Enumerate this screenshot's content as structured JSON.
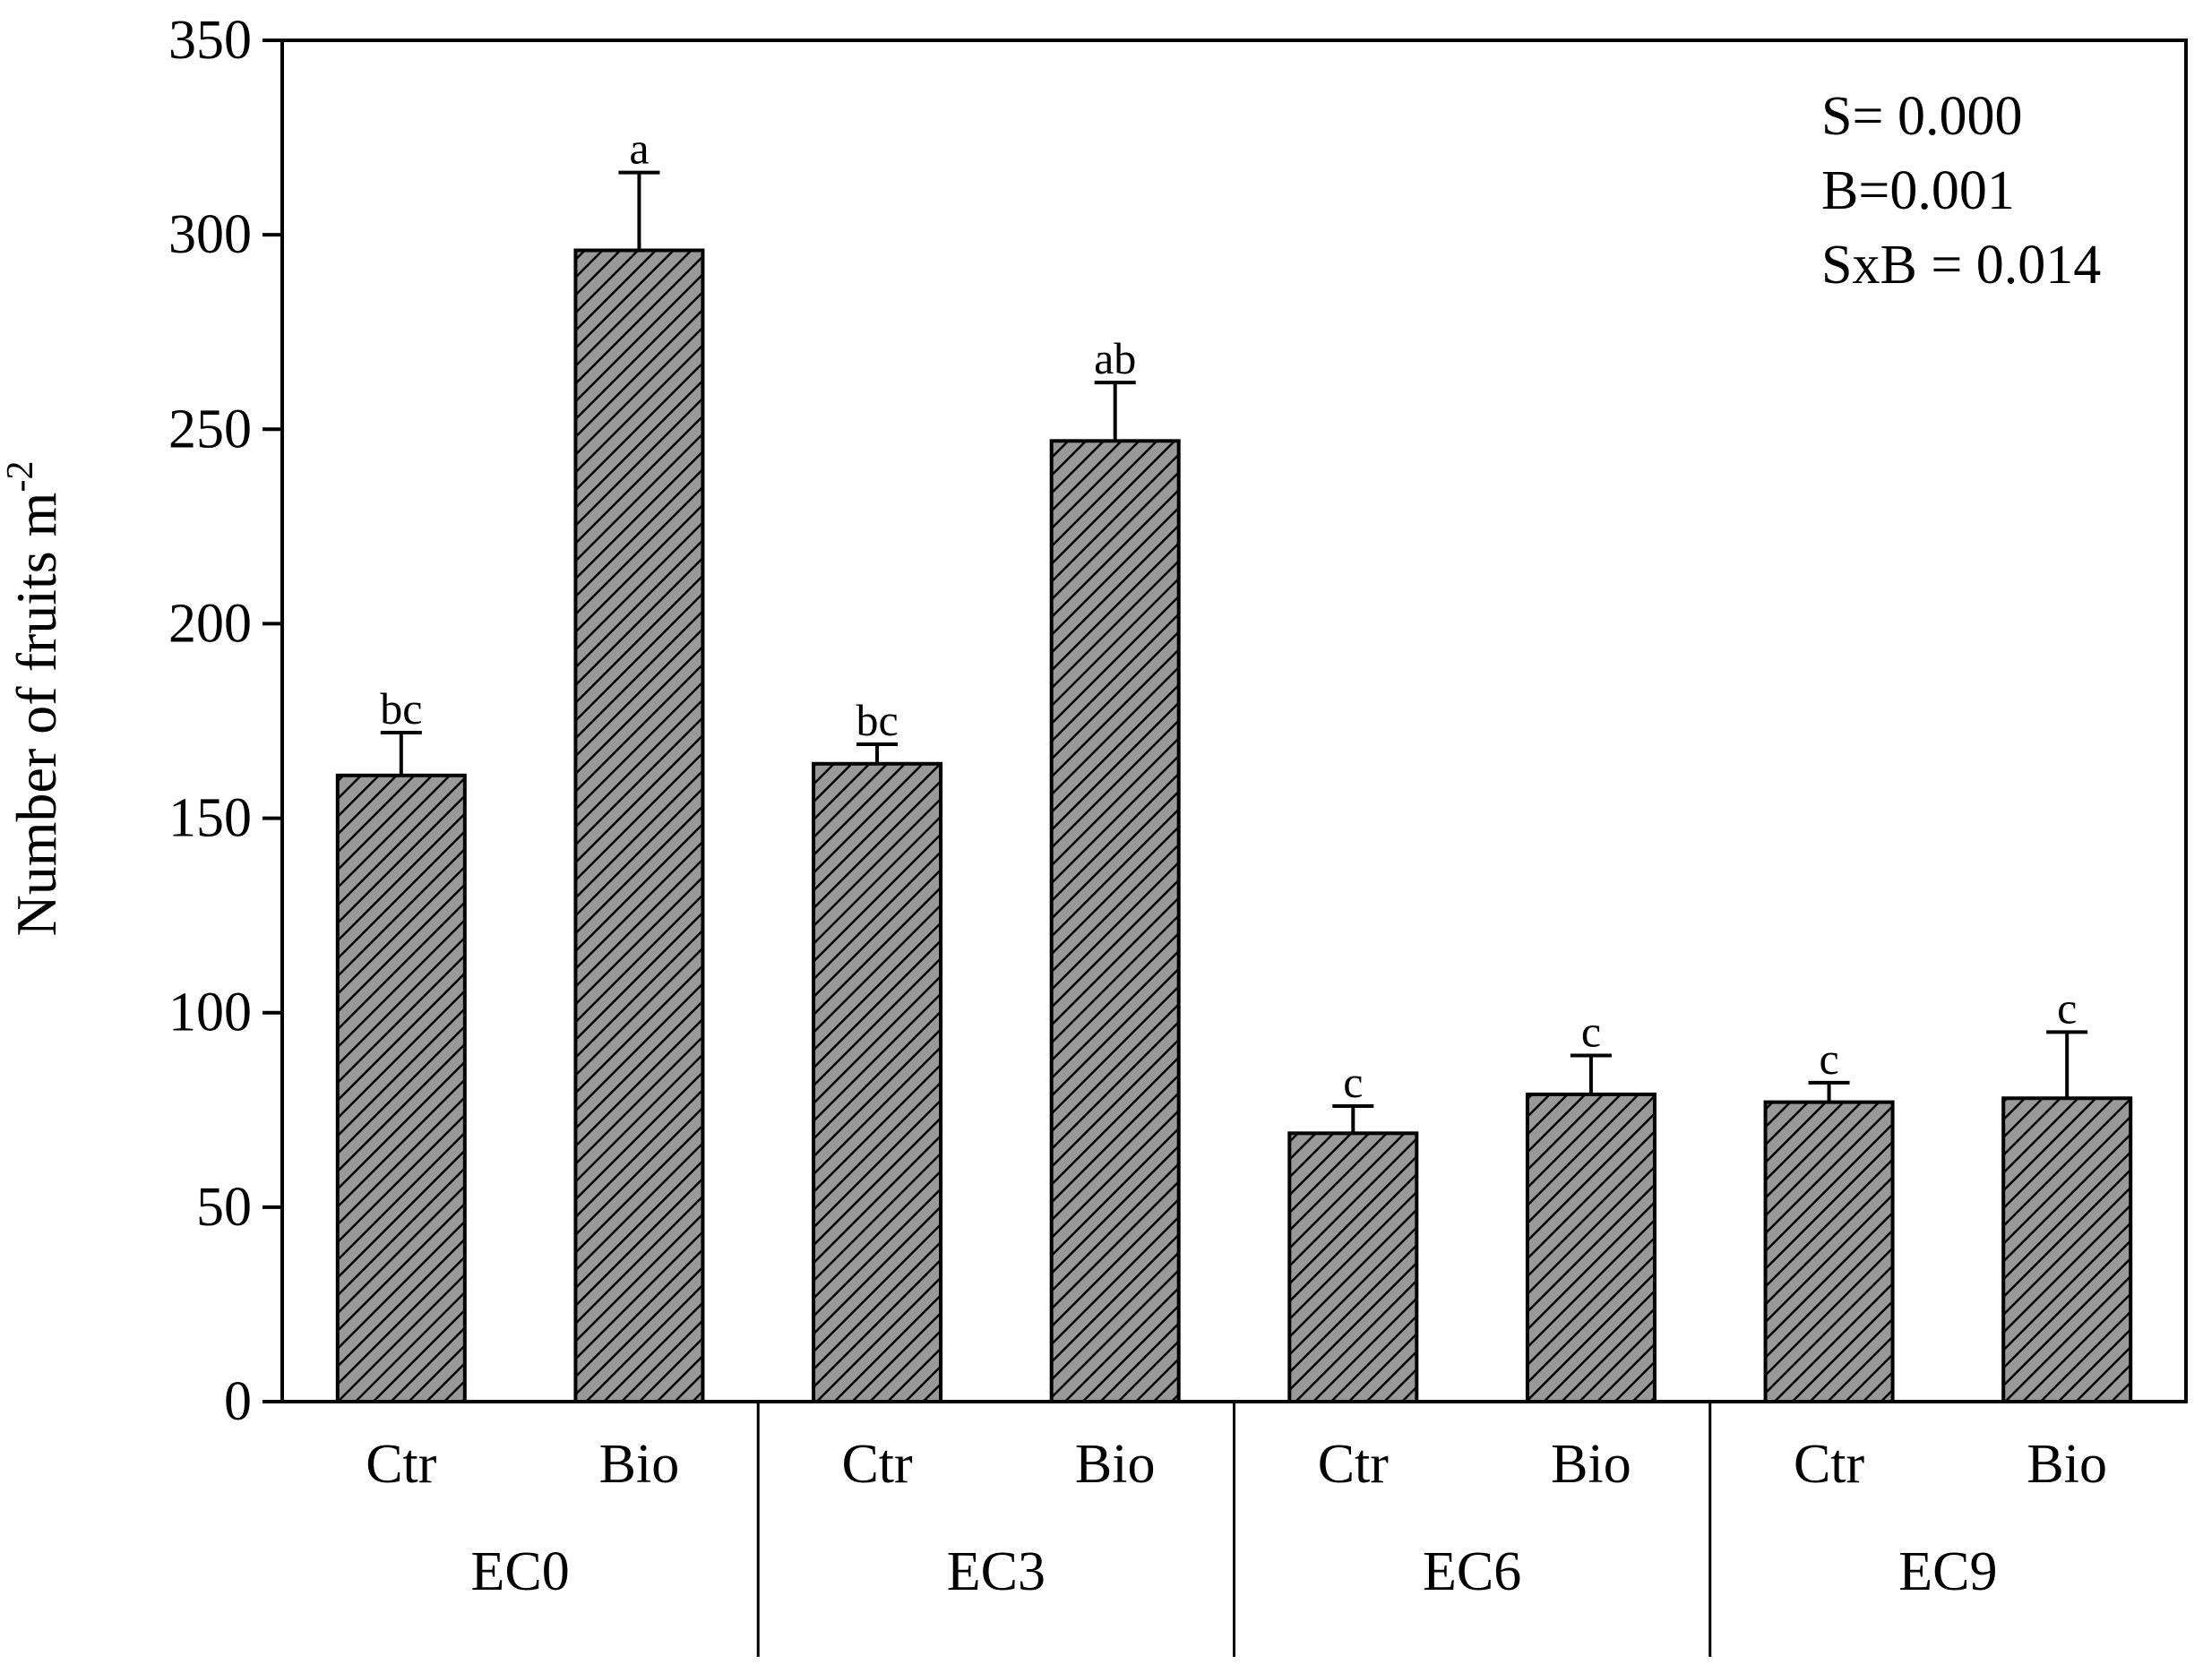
{
  "chart_data": {
    "type": "bar",
    "title": "",
    "xlabel": "",
    "ylabel": "Number of fruits m",
    "ylabel_superscript": "-2",
    "ylim": [
      0,
      350
    ],
    "yticks": [
      0,
      50,
      100,
      150,
      200,
      250,
      300,
      350
    ],
    "yticks_labels": [
      "0",
      "50",
      "100",
      "150",
      "200",
      "250",
      "300",
      "350"
    ],
    "grid": false,
    "groups": [
      "EC0",
      "EC3",
      "EC6",
      "EC9"
    ],
    "categories": [
      "Ctr",
      "Bio",
      "Ctr",
      "Bio",
      "Ctr",
      "Bio",
      "Ctr",
      "Bio"
    ],
    "values": [
      161,
      296,
      164,
      247,
      69,
      79,
      77,
      78
    ],
    "errors": [
      11,
      20,
      5,
      15,
      7,
      10,
      5,
      17
    ],
    "significance_letters": [
      "bc",
      "a",
      "bc",
      "ab",
      "c",
      "c",
      "c",
      "c"
    ],
    "bar_fill": "#999999",
    "hatch_color": "#000000",
    "annotations": [
      "S= 0.000",
      "B=0.001",
      "SxB = 0.014"
    ]
  }
}
